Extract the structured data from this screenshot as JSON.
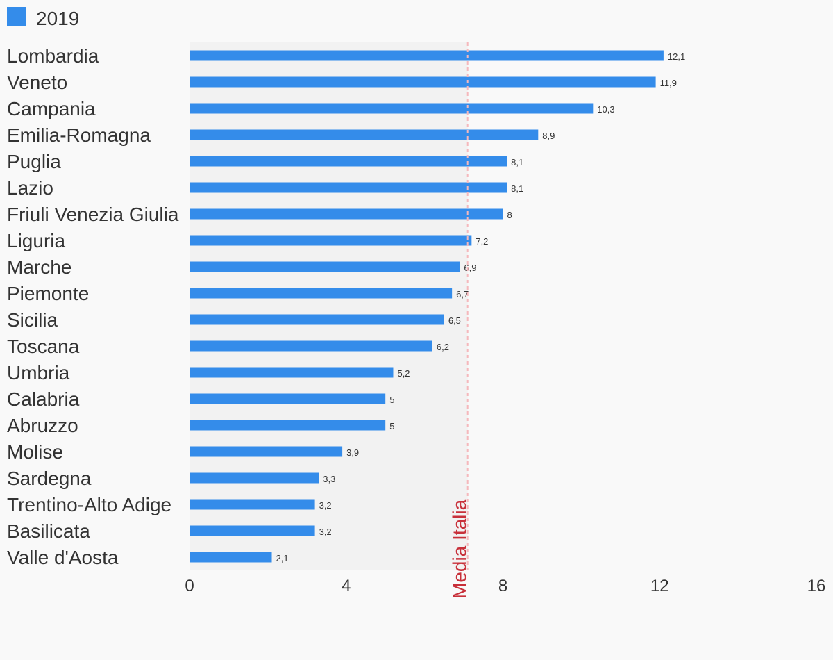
{
  "chart_data": {
    "type": "bar",
    "orientation": "horizontal",
    "categories": [
      "Lombardia",
      "Veneto",
      "Campania",
      "Emilia-Romagna",
      "Puglia",
      "Lazio",
      "Friuli Venezia Giulia",
      "Liguria",
      "Marche",
      "Piemonte",
      "Sicilia",
      "Toscana",
      "Umbria",
      "Calabria",
      "Abruzzo",
      "Molise",
      "Sardegna",
      "Trentino-Alto Adige",
      "Basilicata",
      "Valle d'Aosta"
    ],
    "series": [
      {
        "name": "2019",
        "values": [
          12.1,
          11.9,
          10.3,
          8.9,
          8.1,
          8.1,
          8,
          7.2,
          6.9,
          6.7,
          6.5,
          6.2,
          5.2,
          5,
          5,
          3.9,
          3.3,
          3.2,
          3.2,
          2.1
        ],
        "value_labels": [
          "12,1",
          "11,9",
          "10,3",
          "8,9",
          "8,1",
          "8,1",
          "8",
          "7,2",
          "6,9",
          "6,7",
          "6,5",
          "6,2",
          "5,2",
          "5",
          "5",
          "3,9",
          "3,3",
          "3,2",
          "3,2",
          "2,1"
        ],
        "color": "#348cea"
      }
    ],
    "x_ticks": [
      "0",
      "4",
      "8",
      "12",
      "16"
    ],
    "xlim": [
      0,
      16
    ],
    "reference_line": {
      "label": "Media Italia",
      "value": 7.1,
      "color": "#c8303a"
    },
    "shaded_band": {
      "from": 0,
      "to": 7.1,
      "color": "#f2f2f2"
    },
    "legend": {
      "position": "top-left"
    },
    "grid": false,
    "title": "",
    "xlabel": "",
    "ylabel": ""
  },
  "colors": {
    "background": "#f9f9f9",
    "text": "#333333",
    "bar": "#348cea",
    "reference": "#c8303a",
    "reference_dash": "#f5b8bc",
    "band": "#f2f2f2"
  }
}
